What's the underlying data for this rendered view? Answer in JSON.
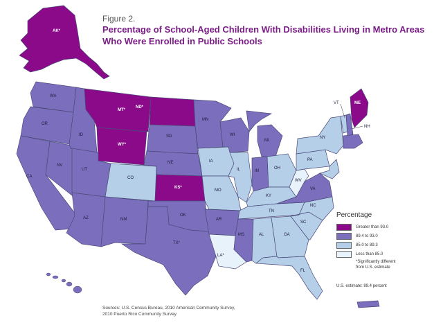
{
  "figure_label": "Figure 2.",
  "title": "Percentage of School-Aged Children With Disabilities Living in Metro Areas Who Were Enrolled in Public Schools",
  "legend": {
    "title": "Percentage",
    "items": [
      {
        "label": "Greater than 93.0",
        "color": "#8b0a8a"
      },
      {
        "label": "89.4 to 93.0",
        "color": "#7b6fbd"
      },
      {
        "label": "85.0 to 89.3",
        "color": "#b5cfe9"
      },
      {
        "label": "Less than 85.0",
        "color": "#e8f2fb"
      }
    ],
    "note_lines": [
      "*Significantly different",
      "from U.S. estimate"
    ],
    "us_estimate": "U.S. estimate: 89.4 percent"
  },
  "sources": {
    "line1": "Sources: U.S. Census Bureau, 2010 American Community Survey,",
    "line2": "2010 Puerto Rico Community Survey."
  },
  "states": {
    "AK": {
      "label": "AK*",
      "category": "greater_93"
    },
    "WA": {
      "label": "WA",
      "category": "89_4_to_93"
    },
    "OR": {
      "label": "OR",
      "category": "89_4_to_93"
    },
    "CA": {
      "label": "CA",
      "category": "89_4_to_93"
    },
    "NV": {
      "label": "NV",
      "category": "89_4_to_93"
    },
    "ID": {
      "label": "ID",
      "category": "89_4_to_93"
    },
    "MT": {
      "label": "MT*",
      "category": "greater_93"
    },
    "WY": {
      "label": "WY*",
      "category": "greater_93"
    },
    "UT": {
      "label": "UT",
      "category": "89_4_to_93"
    },
    "AZ": {
      "label": "AZ",
      "category": "89_4_to_93"
    },
    "CO": {
      "label": "CO",
      "category": "85_to_89_3"
    },
    "NM": {
      "label": "NM",
      "category": "89_4_to_93"
    },
    "ND": {
      "label": "ND*",
      "category": "greater_93"
    },
    "SD": {
      "label": "SD",
      "category": "89_4_to_93"
    },
    "NE": {
      "label": "NE",
      "category": "89_4_to_93"
    },
    "KS": {
      "label": "KS*",
      "category": "greater_93"
    },
    "OK": {
      "label": "OK",
      "category": "89_4_to_93"
    },
    "TX": {
      "label": "TX*",
      "category": "89_4_to_93"
    },
    "MN": {
      "label": "MN",
      "category": "89_4_to_93"
    },
    "IA": {
      "label": "IA",
      "category": "85_to_89_3"
    },
    "MO": {
      "label": "MO",
      "category": "85_to_89_3"
    },
    "AR": {
      "label": "AR",
      "category": "89_4_to_93"
    },
    "LA": {
      "label": "LA*",
      "category": "less_85"
    },
    "WI": {
      "label": "WI",
      "category": "89_4_to_93"
    },
    "IL": {
      "label": "IL",
      "category": "85_to_89_3"
    },
    "MI": {
      "label": "MI",
      "category": "89_4_to_93"
    },
    "IN": {
      "label": "IN",
      "category": "89_4_to_93"
    },
    "OH": {
      "label": "OH",
      "category": "85_to_89_3"
    },
    "KY": {
      "label": "KY",
      "category": "85_to_89_3"
    },
    "TN": {
      "label": "TN",
      "category": "85_to_89_3"
    },
    "MS": {
      "label": "MS",
      "category": "89_4_to_93"
    },
    "AL": {
      "label": "AL",
      "category": "85_to_89_3"
    },
    "GA": {
      "label": "GA",
      "category": "85_to_89_3"
    },
    "FL": {
      "label": "FL",
      "category": "85_to_89_3"
    },
    "SC": {
      "label": "SC",
      "category": "85_to_89_3"
    },
    "NC": {
      "label": "NC",
      "category": "85_to_89_3"
    },
    "VA": {
      "label": "VA",
      "category": "89_4_to_93"
    },
    "WV": {
      "label": "WV",
      "category": "less_85"
    },
    "PA": {
      "label": "PA",
      "category": "85_to_89_3"
    },
    "NY": {
      "label": "NY",
      "category": "85_to_89_3"
    },
    "VT": {
      "label": "VT",
      "category": "85_to_89_3"
    },
    "NH": {
      "label": "NH",
      "category": "89_4_to_93"
    },
    "ME": {
      "label": "ME",
      "category": "greater_93"
    },
    "HI": {
      "label": "HI",
      "category": "89_4_to_93"
    },
    "PR": {
      "label": "PR",
      "category": "89_4_to_93"
    }
  },
  "category_colors": {
    "greater_93": "#8b0a8a",
    "89_4_to_93": "#7b6fbd",
    "85_to_89_3": "#b5cfe9",
    "less_85": "#e8f2fb"
  },
  "border_color": "#4a4a7a"
}
